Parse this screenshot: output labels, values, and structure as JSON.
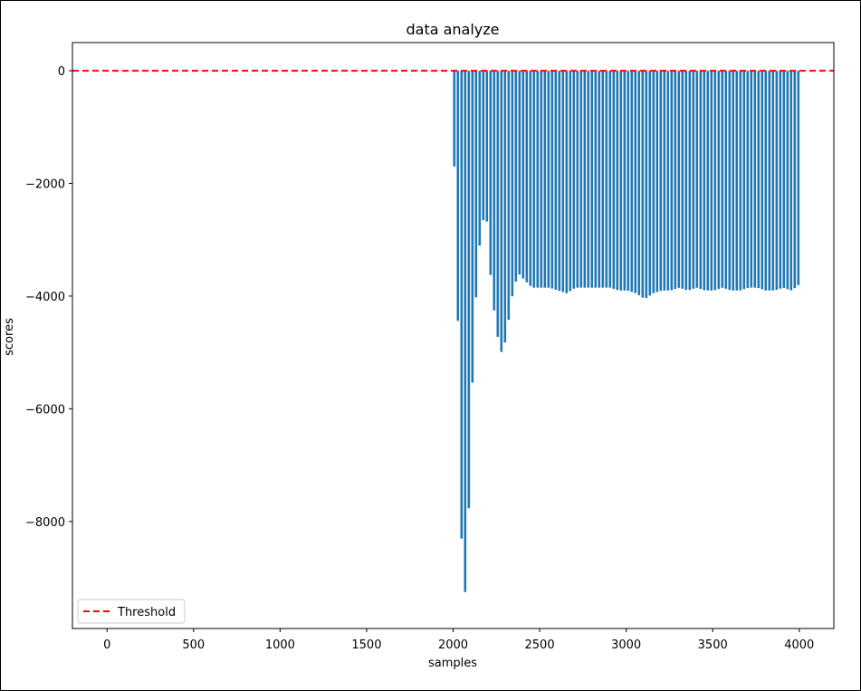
{
  "chart_data": {
    "type": "bar",
    "title": "data analyze",
    "xlabel": "samples",
    "ylabel": "scores",
    "xlim": [
      -200,
      4200
    ],
    "ylim": [
      -9900,
      500
    ],
    "xticks": [
      0,
      500,
      1000,
      1500,
      2000,
      2500,
      3000,
      3500,
      4000
    ],
    "yticks": [
      0,
      -2000,
      -4000,
      -6000,
      -8000
    ],
    "xtick_labels": [
      "0",
      "500",
      "1000",
      "1500",
      "2000",
      "2500",
      "3000",
      "3500",
      "4000"
    ],
    "ytick_labels": [
      "0",
      "−2000",
      "−4000",
      "−6000",
      "−8000"
    ],
    "series": [
      {
        "color": "#1f77b4",
        "x_start": 2000,
        "x_end": 3990,
        "bar_pattern": "alternating near-zero and negative bars",
        "x": [
          2010,
          2020,
          2030,
          2040,
          2050,
          2060,
          2070,
          2080,
          2090,
          2100,
          2110,
          2120,
          2130,
          2140,
          2150,
          2160,
          2170,
          2180,
          2190,
          2200,
          2220,
          2240,
          2260,
          2280,
          2300,
          2320,
          2340,
          2360,
          2380,
          2400,
          2450,
          2500,
          2550,
          2600,
          2650,
          2700,
          2750,
          2800,
          2850,
          2900,
          2950,
          3000,
          3050,
          3100,
          3150,
          3200,
          3250,
          3300,
          3350,
          3400,
          3450,
          3500,
          3550,
          3600,
          3650,
          3700,
          3750,
          3800,
          3850,
          3900,
          3950,
          3990
        ],
        "y": [
          -1700,
          -4300,
          -5800,
          -8100,
          -9200,
          -9350,
          -9000,
          -8100,
          -7200,
          -6000,
          -5000,
          -4300,
          -3800,
          -3300,
          -3000,
          -2800,
          -2600,
          -2550,
          -2700,
          -3300,
          -4000,
          -4500,
          -4900,
          -5050,
          -4700,
          -4300,
          -3900,
          -3700,
          -3600,
          -3700,
          -3850,
          -3850,
          -3850,
          -3900,
          -3950,
          -3850,
          -3850,
          -3850,
          -3850,
          -3850,
          -3900,
          -3900,
          -3950,
          -4050,
          -3950,
          -3900,
          -3900,
          -3850,
          -3900,
          -3850,
          -3900,
          -3900,
          -3850,
          -3900,
          -3900,
          -3850,
          -3850,
          -3900,
          -3900,
          -3850,
          -3900,
          -3800
        ]
      }
    ],
    "threshold": {
      "label": "Threshold",
      "value": 0,
      "color": "#ff0000",
      "style": "dashed"
    },
    "legend": {
      "placement": "lower-left",
      "entries": [
        "Threshold"
      ]
    },
    "grid": false
  }
}
